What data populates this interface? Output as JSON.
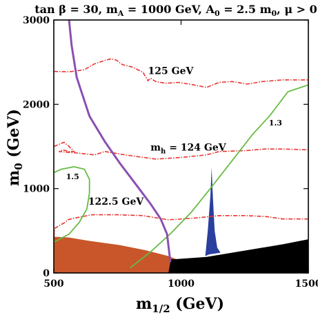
{
  "chart_data": {
    "type": "contour",
    "title": {
      "parts": [
        {
          "t": "tan β = 30, m",
          "sub": ""
        },
        {
          "t": "",
          "sub": "A"
        },
        {
          "t": " = 1000 GeV, A",
          "sub": ""
        },
        {
          "t": "",
          "sub": "0"
        },
        {
          "t": " = 2.5 m",
          "sub": ""
        },
        {
          "t": "",
          "sub": "0"
        },
        {
          "t": ", μ > 0",
          "sub": ""
        }
      ]
    },
    "xlabel": {
      "main": "m",
      "sub": "1/2",
      "unit": " (GeV)"
    },
    "ylabel": {
      "main": "m",
      "sub": "0",
      "unit": " (GeV)"
    },
    "xlim": [
      500,
      1500
    ],
    "ylim": [
      0,
      3000
    ],
    "xticks": [
      500,
      1000,
      1500
    ],
    "yticks": [
      0,
      1000,
      2000,
      3000
    ],
    "colors": {
      "higgs": "#e8332e",
      "ratio": "#66bb44",
      "purple": "#8a4fb2",
      "stau": "#c8562a",
      "charged": "#000000",
      "relic": "#2a3f9e",
      "frame": "#000000"
    },
    "higgs_contours": [
      {
        "label": "125 GeV",
        "label_at": [
          870,
          2360
        ],
        "points": [
          [
            500,
            2390
          ],
          [
            560,
            2385
          ],
          [
            620,
            2410
          ],
          [
            660,
            2480
          ],
          [
            700,
            2520
          ],
          [
            725,
            2540
          ],
          [
            745,
            2525
          ],
          [
            770,
            2470
          ],
          [
            810,
            2440
          ],
          [
            850,
            2380
          ],
          [
            870,
            2280
          ],
          [
            880,
            2310
          ],
          [
            900,
            2270
          ],
          [
            940,
            2250
          ],
          [
            990,
            2260
          ],
          [
            1050,
            2230
          ],
          [
            1100,
            2200
          ],
          [
            1150,
            2260
          ],
          [
            1200,
            2270
          ],
          [
            1260,
            2240
          ],
          [
            1320,
            2270
          ],
          [
            1400,
            2290
          ],
          [
            1500,
            2290
          ]
        ]
      },
      {
        "label": "124 GeV",
        "label_at": [
          880,
          1450
        ],
        "label_prefix": "m",
        "label_sub": "h",
        "points": [
          [
            500,
            1500
          ],
          [
            540,
            1550
          ],
          [
            560,
            1500
          ],
          [
            580,
            1440
          ],
          [
            560,
            1440
          ],
          [
            535,
            1460
          ],
          [
            520,
            1440
          ],
          [
            600,
            1420
          ],
          [
            660,
            1400
          ],
          [
            700,
            1440
          ],
          [
            780,
            1400
          ],
          [
            900,
            1350
          ],
          [
            1000,
            1370
          ],
          [
            1100,
            1400
          ],
          [
            1150,
            1440
          ],
          [
            1250,
            1450
          ],
          [
            1330,
            1470
          ],
          [
            1400,
            1470
          ],
          [
            1500,
            1460
          ]
        ]
      },
      {
        "label": "122.5 GeV",
        "label_at": [
          635,
          810
        ],
        "points": [
          [
            500,
            430
          ],
          [
            505,
            530
          ],
          [
            520,
            560
          ],
          [
            545,
            600
          ],
          [
            555,
            630
          ],
          [
            580,
            650
          ],
          [
            650,
            690
          ],
          [
            750,
            690
          ],
          [
            850,
            680
          ],
          [
            950,
            630
          ],
          [
            1050,
            650
          ],
          [
            1150,
            680
          ],
          [
            1250,
            680
          ],
          [
            1330,
            670
          ],
          [
            1400,
            640
          ],
          [
            1500,
            640
          ]
        ]
      }
    ],
    "ratio_contours": [
      {
        "label": "1.3",
        "label_at": [
          1345,
          1750
        ],
        "points": [
          [
            800,
            60
          ],
          [
            880,
            250
          ],
          [
            960,
            470
          ],
          [
            1040,
            720
          ],
          [
            1120,
            1020
          ],
          [
            1200,
            1330
          ],
          [
            1280,
            1640
          ],
          [
            1350,
            1870
          ],
          [
            1420,
            2150
          ],
          [
            1500,
            2230
          ]
        ]
      },
      {
        "label": "1.5",
        "label_at": [
          548,
          1110
        ],
        "points": [
          [
            500,
            1190
          ],
          [
            530,
            1230
          ],
          [
            580,
            1260
          ],
          [
            620,
            1230
          ],
          [
            640,
            1110
          ],
          [
            640,
            950
          ],
          [
            630,
            760
          ],
          [
            600,
            600
          ],
          [
            560,
            460
          ],
          [
            510,
            380
          ],
          [
            500,
            370
          ]
        ]
      }
    ],
    "purple_curve": {
      "points": [
        [
          560,
          3000
        ],
        [
          570,
          2700
        ],
        [
          590,
          2320
        ],
        [
          640,
          1860
        ],
        [
          700,
          1560
        ],
        [
          760,
          1300
        ],
        [
          820,
          1060
        ],
        [
          880,
          820
        ],
        [
          920,
          640
        ],
        [
          945,
          460
        ],
        [
          952,
          280
        ],
        [
          958,
          130
        ]
      ]
    },
    "stau_region": {
      "points": [
        [
          500,
          0
        ],
        [
          500,
          430
        ],
        [
          560,
          420
        ],
        [
          640,
          380
        ],
        [
          760,
          330
        ],
        [
          860,
          270
        ],
        [
          950,
          200
        ],
        [
          1010,
          130
        ],
        [
          1000,
          0
        ]
      ]
    },
    "charged_region": {
      "points": [
        [
          950,
          0
        ],
        [
          960,
          160
        ],
        [
          1100,
          190
        ],
        [
          1200,
          240
        ],
        [
          1300,
          290
        ],
        [
          1400,
          340
        ],
        [
          1500,
          400
        ],
        [
          1500,
          0
        ]
      ]
    },
    "relic_region": {
      "points": [
        [
          1095,
          200
        ],
        [
          1105,
          500
        ],
        [
          1115,
          900
        ],
        [
          1120,
          1250
        ],
        [
          1125,
          900
        ],
        [
          1132,
          500
        ],
        [
          1142,
          300
        ],
        [
          1155,
          240
        ],
        [
          1110,
          220
        ]
      ]
    }
  }
}
